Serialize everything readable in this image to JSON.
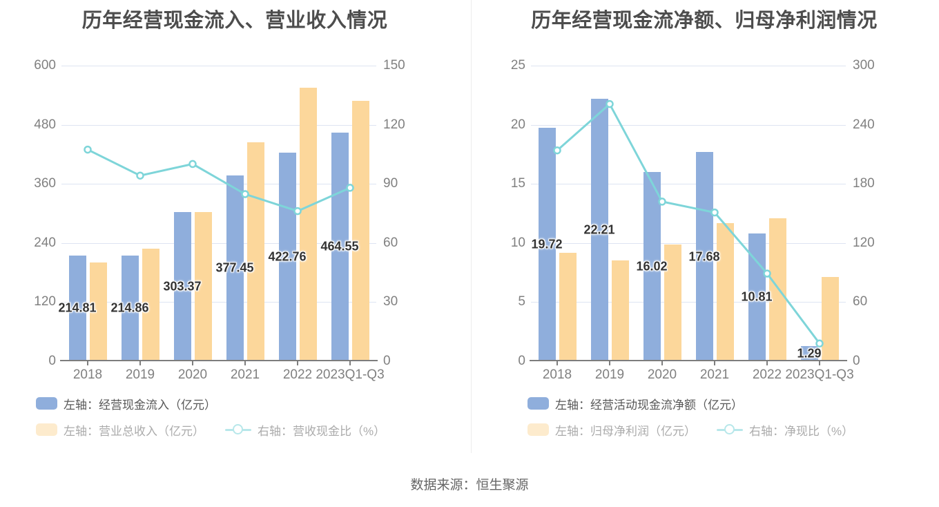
{
  "footer": {
    "source": "数据来源：恒生聚源"
  },
  "chart_data": [
    {
      "type": "combo-bar-line",
      "title": "历年经营现金流入、营业收入情况",
      "categories": [
        "2018",
        "2019",
        "2020",
        "2021",
        "2022",
        "2023Q1-Q3"
      ],
      "grid": true,
      "legend_position": "bottom",
      "y_axis_left": {
        "max": 600,
        "min": 0,
        "ticks": [
          600,
          480,
          360,
          240,
          120,
          0
        ]
      },
      "y_axis_right": {
        "max": 150,
        "min": 0,
        "ticks": [
          150,
          120,
          90,
          60,
          30,
          0
        ]
      },
      "series": [
        {
          "key": "cash-inflow",
          "name": "左轴：经营现金流入（亿元）",
          "type": "bar",
          "axis": "left",
          "color": "#8FAEDC",
          "values": [
            214.81,
            214.86,
            303.37,
            377.45,
            422.76,
            464.55
          ],
          "data_labels": [
            "214.81",
            "214.86",
            "303.37",
            "377.45",
            "422.76",
            "464.55"
          ]
        },
        {
          "key": "total-revenue",
          "name": "左轴：营业总收入（亿元）",
          "type": "bar",
          "axis": "left",
          "color": "#FCD79B",
          "estimated": true,
          "values": [
            200,
            228,
            303,
            445,
            555,
            528
          ]
        },
        {
          "key": "revenue-cash-ratio",
          "name": "右轴：营收现金比（%）",
          "type": "line",
          "axis": "right",
          "color": "#7ED5D9",
          "estimated": true,
          "values": [
            107.4,
            94.2,
            100.1,
            84.8,
            76.2,
            88
          ]
        }
      ]
    },
    {
      "type": "combo-bar-line",
      "title": "历年经营现金流净额、归母净利润情况",
      "categories": [
        "2018",
        "2019",
        "2020",
        "2021",
        "2022",
        "2023Q1-Q3"
      ],
      "grid": true,
      "legend_position": "bottom",
      "y_axis_left": {
        "max": 25,
        "min": 0,
        "ticks": [
          25,
          20,
          15,
          10,
          5,
          0
        ]
      },
      "y_axis_right": {
        "max": 300,
        "min": 0,
        "ticks": [
          300,
          240,
          180,
          120,
          60,
          0
        ]
      },
      "series": [
        {
          "key": "net-operating-cash-flow",
          "name": "左轴：经营活动现金流净额（亿元）",
          "type": "bar",
          "axis": "left",
          "color": "#8FAEDC",
          "values": [
            19.72,
            22.21,
            16.02,
            17.68,
            10.81,
            1.29
          ],
          "data_labels": [
            "19.72",
            "22.21",
            "16.02",
            "17.68",
            "10.81",
            "1.29"
          ]
        },
        {
          "key": "net-profit",
          "name": "左轴：归母净利润（亿元）",
          "type": "bar",
          "axis": "left",
          "color": "#FCD79B",
          "estimated": true,
          "values": [
            9.2,
            8.5,
            9.9,
            11.7,
            12.1,
            7.1
          ]
        },
        {
          "key": "net-cash-ratio",
          "name": "右轴：净现比（%）",
          "type": "line",
          "axis": "right",
          "color": "#7ED5D9",
          "estimated": true,
          "values": [
            214,
            261,
            162,
            151,
            89,
            18
          ]
        }
      ]
    }
  ]
}
